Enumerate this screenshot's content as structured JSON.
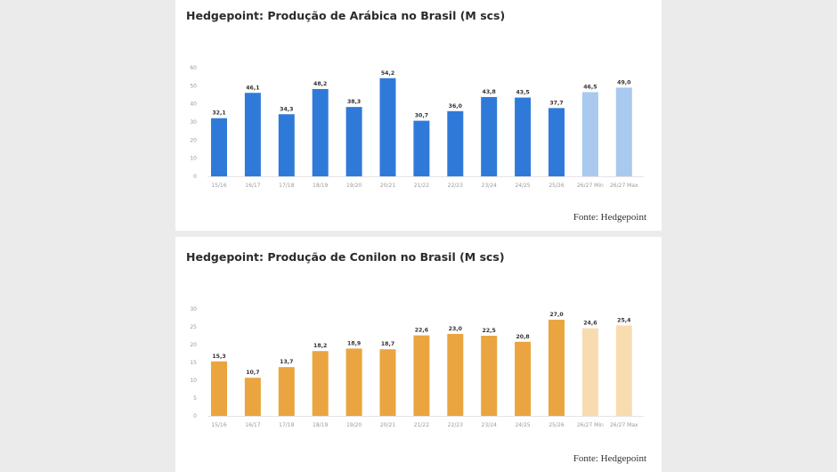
{
  "chart_data": [
    {
      "type": "bar",
      "title": "Hedgepoint: Produção de Arábica no Brasil (M scs)",
      "source": "Fonte: Hedgepoint",
      "categories": [
        "15/16",
        "16/17",
        "17/18",
        "18/19",
        "19/20",
        "20/21",
        "21/22",
        "22/23",
        "23/24",
        "24/25",
        "25/26",
        "26/27 Min",
        "26/27 Max"
      ],
      "values": [
        32.1,
        46.1,
        34.3,
        48.2,
        38.3,
        54.2,
        30.7,
        36.0,
        43.8,
        43.5,
        37.7,
        46.5,
        49.0
      ],
      "value_labels": [
        "32,1",
        "46,1",
        "34,3",
        "48,2",
        "38,3",
        "54,2",
        "30,7",
        "36,0",
        "43,8",
        "43,5",
        "37,7",
        "46,5",
        "49,0"
      ],
      "projected": [
        false,
        false,
        false,
        false,
        false,
        false,
        false,
        false,
        false,
        false,
        false,
        true,
        true
      ],
      "yticks": [
        0,
        10,
        20,
        30,
        40,
        50,
        60
      ],
      "ylim": [
        0,
        60
      ],
      "xlabel": "",
      "ylabel": "",
      "grid": false,
      "colors": {
        "actual": "#2f7ad9",
        "projected": "#a9c9ef"
      }
    },
    {
      "type": "bar",
      "title": "Hedgepoint: Produção de Conilon no Brasil (M scs)",
      "source": "Fonte: Hedgepoint",
      "categories": [
        "15/16",
        "16/17",
        "17/18",
        "18/19",
        "19/20",
        "20/21",
        "21/22",
        "22/23",
        "23/24",
        "24/25",
        "25/26",
        "26/27 Min",
        "26/27 Max"
      ],
      "values": [
        15.3,
        10.7,
        13.7,
        18.2,
        18.9,
        18.7,
        22.6,
        23.0,
        22.5,
        20.8,
        27.0,
        24.6,
        25.4
      ],
      "value_labels": [
        "15,3",
        "10,7",
        "13,7",
        "18,2",
        "18,9",
        "18,7",
        "22,6",
        "23,0",
        "22,5",
        "20,8",
        "27,0",
        "24,6",
        "25,4"
      ],
      "projected": [
        false,
        false,
        false,
        false,
        false,
        false,
        false,
        false,
        false,
        false,
        false,
        true,
        true
      ],
      "yticks": [
        0,
        5,
        10,
        15,
        20,
        25,
        30
      ],
      "ylim": [
        0,
        30
      ],
      "xlabel": "",
      "ylabel": "",
      "grid": false,
      "colors": {
        "actual": "#eaa540",
        "projected": "#f8dcb0"
      }
    }
  ]
}
